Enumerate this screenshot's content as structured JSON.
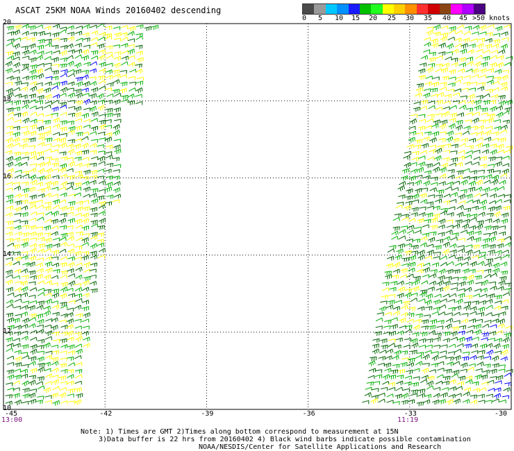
{
  "title": "ASCAT 25KM NOAA Winds 20160402 descending",
  "legend": {
    "labels": [
      "0",
      "5",
      "10",
      "15",
      "20",
      "25",
      "30",
      "35",
      "40",
      "45",
      ">50 knots"
    ],
    "colors": [
      "#4a4a4a",
      "#9a9a9a",
      "#00c8ff",
      "#0090ff",
      "#1a1aff",
      "#00c000",
      "#20ff20",
      "#ffff00",
      "#ffd000",
      "#ff9000",
      "#ff3030",
      "#d00000",
      "#8b4513",
      "#ff00ff",
      "#b000ff",
      "#4b0082"
    ]
  },
  "axes": {
    "lon_labels": [
      "-45",
      "-42",
      "-39",
      "-36",
      "-33",
      "-30"
    ],
    "lat_labels": [
      "20",
      "18",
      "16",
      "14",
      "12",
      "10"
    ],
    "lon_values": [
      -45,
      -42,
      -39,
      -36,
      -33,
      -30
    ],
    "lat_values": [
      20,
      18,
      16,
      14,
      12,
      10
    ]
  },
  "swath_times": {
    "left": "13:00",
    "right": "11:19"
  },
  "wind_color_classes": {
    "dark_green": "#006400",
    "green": "#00b000",
    "yellow": "#ffff00",
    "blue": "#0000ff",
    "black": "#000000"
  },
  "footer": {
    "note1": "Note: 1) Times are GMT 2)Times along bottom correspond to measurement at 15N",
    "note2": "3)Data buffer is 22 hrs from 20160402 4) Black wind barbs indicate possible contamination",
    "credit": "NOAA/NESDIS/Center for Satellite Applications and Research"
  }
}
